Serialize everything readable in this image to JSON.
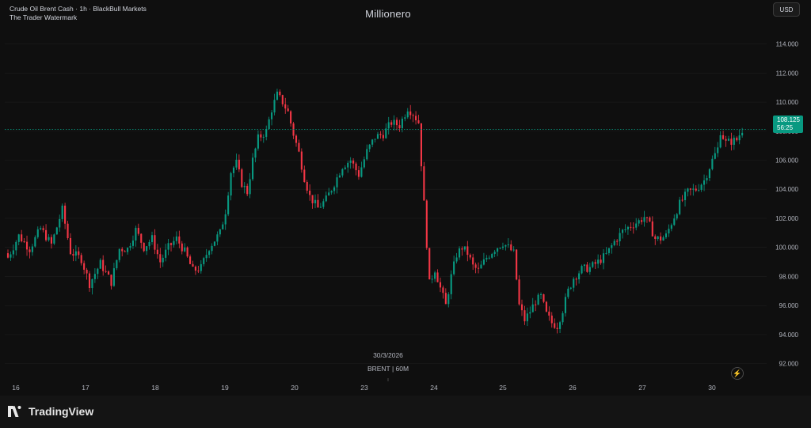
{
  "header": {
    "title_line": "Crude Oil Brent Cash · 1h · BlackBull Markets",
    "watermark_line": "The Trader Watermark",
    "center_title": "Millionero",
    "currency": "USD"
  },
  "price_tag": {
    "price": "108.125",
    "countdown": "56:25"
  },
  "crosshair": {
    "date": "30/3/2026",
    "symbol": "BRENT | 60M"
  },
  "footer": {
    "brand": "TradingView"
  },
  "colors": {
    "up": "#089981",
    "down": "#f23645",
    "bg": "#0f0f0f",
    "text": "#b2b5be",
    "grid": "#1e1e1e"
  },
  "chart_data": {
    "type": "candlestick",
    "interval": "1h",
    "ylim": [
      91.0,
      115.5
    ],
    "y_ticks": [
      92,
      94,
      96,
      98,
      100,
      102,
      104,
      106,
      108,
      110,
      112,
      114
    ],
    "y_tick_labels": [
      "92.000",
      "94.000",
      "96.000",
      "98.000",
      "100.000",
      "102.000",
      "104.000",
      "106.000",
      "108.000",
      "110.000",
      "112.000",
      "114.000"
    ],
    "x_labels": [
      "16",
      "17",
      "18",
      "19",
      "20",
      "23",
      "24",
      "25",
      "26",
      "27",
      "30"
    ],
    "close_path": [
      {
        "x": 0,
        "y": 99.3
      },
      {
        "x": 4,
        "y": 100.8
      },
      {
        "x": 8,
        "y": 99.9
      },
      {
        "x": 12,
        "y": 101.3
      },
      {
        "x": 16,
        "y": 100.2
      },
      {
        "x": 20,
        "y": 102.6
      },
      {
        "x": 23,
        "y": 99.7
      },
      {
        "x": 27,
        "y": 99.2
      },
      {
        "x": 30,
        "y": 97.5
      },
      {
        "x": 34,
        "y": 98.9
      },
      {
        "x": 38,
        "y": 97.6
      },
      {
        "x": 41,
        "y": 99.9
      },
      {
        "x": 44,
        "y": 99.9
      },
      {
        "x": 47,
        "y": 101.2
      },
      {
        "x": 50,
        "y": 100.0
      },
      {
        "x": 53,
        "y": 100.6
      },
      {
        "x": 56,
        "y": 99.0
      },
      {
        "x": 59,
        "y": 100.0
      },
      {
        "x": 62,
        "y": 100.6
      },
      {
        "x": 65,
        "y": 99.7
      },
      {
        "x": 68,
        "y": 98.4
      },
      {
        "x": 71,
        "y": 98.6
      },
      {
        "x": 74,
        "y": 100.0
      },
      {
        "x": 78,
        "y": 101.0
      },
      {
        "x": 80,
        "y": 102.5
      },
      {
        "x": 82,
        "y": 105.2
      },
      {
        "x": 84,
        "y": 105.8
      },
      {
        "x": 86,
        "y": 104.4
      },
      {
        "x": 88,
        "y": 103.8
      },
      {
        "x": 90,
        "y": 106.0
      },
      {
        "x": 92,
        "y": 107.5
      },
      {
        "x": 95,
        "y": 108.0
      },
      {
        "x": 97,
        "y": 109.5
      },
      {
        "x": 99,
        "y": 110.5
      },
      {
        "x": 101,
        "y": 110.0
      },
      {
        "x": 103,
        "y": 109.3
      },
      {
        "x": 105,
        "y": 107.8
      },
      {
        "x": 107,
        "y": 106.5
      },
      {
        "x": 109,
        "y": 104.8
      },
      {
        "x": 111,
        "y": 103.5
      },
      {
        "x": 114,
        "y": 102.7
      },
      {
        "x": 117,
        "y": 103.3
      },
      {
        "x": 120,
        "y": 104.4
      },
      {
        "x": 123,
        "y": 105.6
      },
      {
        "x": 126,
        "y": 106.0
      },
      {
        "x": 129,
        "y": 105.0
      },
      {
        "x": 132,
        "y": 106.6
      },
      {
        "x": 135,
        "y": 107.6
      },
      {
        "x": 138,
        "y": 107.8
      },
      {
        "x": 141,
        "y": 108.6
      },
      {
        "x": 144,
        "y": 108.4
      },
      {
        "x": 147,
        "y": 109.6
      },
      {
        "x": 149,
        "y": 109.2
      },
      {
        "x": 151,
        "y": 108.6
      },
      {
        "x": 153,
        "y": 103.0
      },
      {
        "x": 155,
        "y": 97.5
      },
      {
        "x": 157,
        "y": 98.5
      },
      {
        "x": 159,
        "y": 97.2
      },
      {
        "x": 161,
        "y": 96.0
      },
      {
        "x": 163,
        "y": 98.0
      },
      {
        "x": 165,
        "y": 99.5
      },
      {
        "x": 167,
        "y": 100.0
      },
      {
        "x": 169,
        "y": 99.6
      },
      {
        "x": 171,
        "y": 98.7
      },
      {
        "x": 173,
        "y": 98.4
      },
      {
        "x": 176,
        "y": 99.3
      },
      {
        "x": 179,
        "y": 99.9
      },
      {
        "x": 182,
        "y": 100.3
      },
      {
        "x": 184,
        "y": 100.0
      },
      {
        "x": 186,
        "y": 99.6
      },
      {
        "x": 188,
        "y": 96.0
      },
      {
        "x": 190,
        "y": 95.0
      },
      {
        "x": 192,
        "y": 95.6
      },
      {
        "x": 194,
        "y": 96.3
      },
      {
        "x": 196,
        "y": 96.6
      },
      {
        "x": 198,
        "y": 95.4
      },
      {
        "x": 200,
        "y": 94.8
      },
      {
        "x": 202,
        "y": 94.6
      },
      {
        "x": 204,
        "y": 95.7
      },
      {
        "x": 206,
        "y": 97.0
      },
      {
        "x": 208,
        "y": 97.9
      },
      {
        "x": 211,
        "y": 98.5
      },
      {
        "x": 214,
        "y": 98.6
      },
      {
        "x": 217,
        "y": 99.0
      },
      {
        "x": 220,
        "y": 99.5
      },
      {
        "x": 223,
        "y": 100.4
      },
      {
        "x": 226,
        "y": 101.1
      },
      {
        "x": 229,
        "y": 101.5
      },
      {
        "x": 232,
        "y": 101.8
      },
      {
        "x": 234,
        "y": 102.1
      },
      {
        "x": 236,
        "y": 101.5
      },
      {
        "x": 238,
        "y": 100.6
      },
      {
        "x": 240,
        "y": 100.6
      },
      {
        "x": 242,
        "y": 100.8
      },
      {
        "x": 244,
        "y": 101.7
      },
      {
        "x": 247,
        "y": 103.0
      },
      {
        "x": 250,
        "y": 103.8
      },
      {
        "x": 253,
        "y": 104.0
      },
      {
        "x": 256,
        "y": 104.6
      },
      {
        "x": 259,
        "y": 106.0
      },
      {
        "x": 261,
        "y": 106.8
      },
      {
        "x": 262,
        "y": 108.0
      },
      {
        "x": 264,
        "y": 107.2
      },
      {
        "x": 266,
        "y": 107.3
      },
      {
        "x": 268,
        "y": 107.4
      },
      {
        "x": 270,
        "y": 108.1
      }
    ],
    "current_price": 108.125
  }
}
